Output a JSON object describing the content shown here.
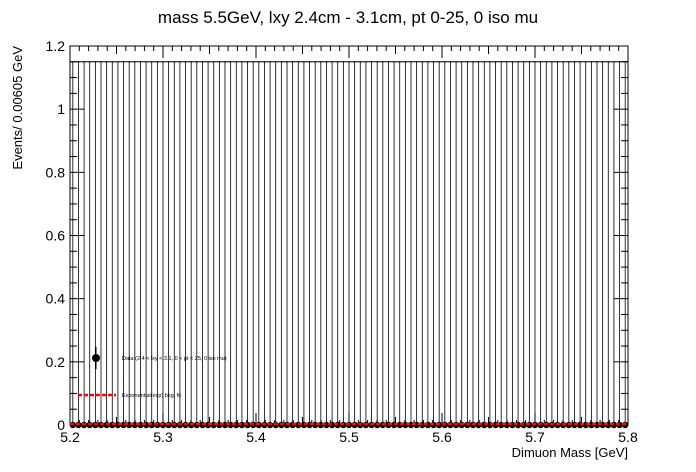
{
  "chart_data": {
    "type": "scatter",
    "title": "mass 5.5GeV, lxy 2.4cm - 3.1cm, pt 0-25, 0 iso mu",
    "xlabel": "Dimuon Mass [GeV]",
    "ylabel": "Events/ 0.00605 GeV",
    "xlim": [
      5.2,
      5.8
    ],
    "ylim": [
      0,
      1.2
    ],
    "x_ticks": [
      "5.2",
      "5.3",
      "5.4",
      "5.5",
      "5.6",
      "5.7",
      "5.8"
    ],
    "y_ticks": [
      "0",
      "0.2",
      "0.4",
      "0.6",
      "0.8",
      "1",
      "1.2"
    ],
    "n_bins": 99,
    "bin_width": 0.00605,
    "grid": false,
    "series": [
      {
        "name": "Data (2.4 < lxy < 3.1, 0 < pt < 25, 0 iso mu)",
        "kind": "points",
        "values_all_bins": 0,
        "error_up": 1.15,
        "color": "#000000"
      },
      {
        "name": "Exponential(exp) bkg. fit",
        "kind": "dashed-line",
        "value": 0,
        "color": "#ff0000"
      }
    ],
    "legend": "left, lower middle"
  }
}
